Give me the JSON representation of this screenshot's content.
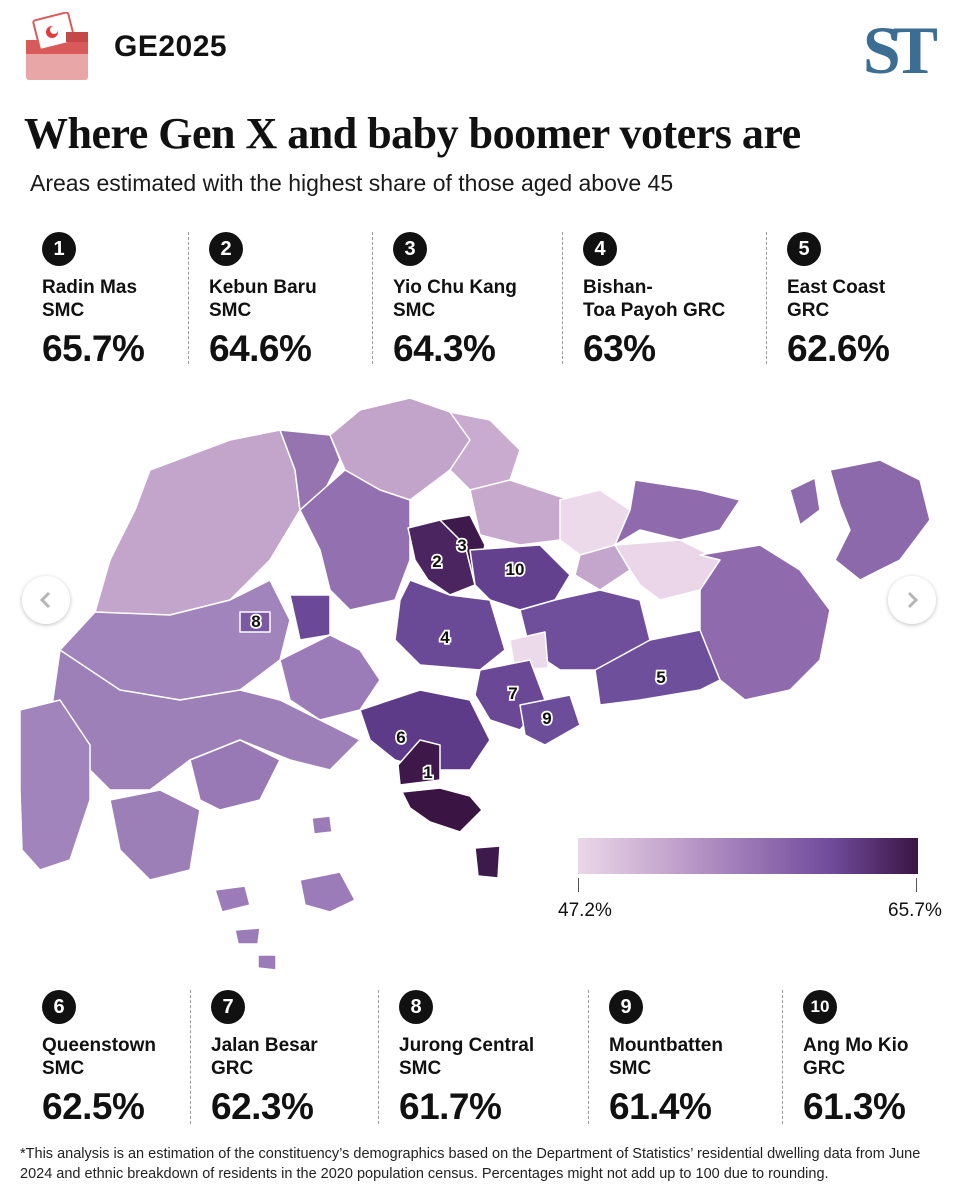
{
  "header": {
    "tag": "GE2025",
    "logo": "ST",
    "ballot_icon": "ballot-box-icon"
  },
  "title": "Where Gen X and baby boomer voters are",
  "subtitle": "Areas estimated with the highest share of those aged above 45",
  "top_ranks": [
    {
      "rank": "1",
      "name": "Radin Mas\nSMC",
      "pct": "65.7%"
    },
    {
      "rank": "2",
      "name": "Kebun Baru\nSMC",
      "pct": "64.6%"
    },
    {
      "rank": "3",
      "name": "Yio Chu Kang\nSMC",
      "pct": "64.3%"
    },
    {
      "rank": "4",
      "name": "Bishan-\nToa Payoh GRC",
      "pct": "63%"
    },
    {
      "rank": "5",
      "name": "East Coast\nGRC",
      "pct": "62.6%"
    }
  ],
  "bottom_ranks": [
    {
      "rank": "6",
      "name": "Queenstown\nSMC",
      "pct": "62.5%"
    },
    {
      "rank": "7",
      "name": "Jalan Besar\nGRC",
      "pct": "62.3%"
    },
    {
      "rank": "8",
      "name": "Jurong Central\nSMC",
      "pct": "61.7%"
    },
    {
      "rank": "9",
      "name": "Mountbatten\nSMC",
      "pct": "61.4%"
    },
    {
      "rank": "10",
      "name": "Ang Mo Kio\nGRC",
      "pct": "61.3%"
    }
  ],
  "map_labels": [
    "1",
    "2",
    "3",
    "4",
    "5",
    "6",
    "7",
    "8",
    "9",
    "10"
  ],
  "legend": {
    "min": "47.2%",
    "max": "65.7%",
    "colors": [
      "#ead7e8",
      "#3a1544"
    ]
  },
  "nav": {
    "left_icon": "chevron-left-icon",
    "right_icon": "chevron-right-icon"
  },
  "footnote": "*This analysis is an estimation of the constituency’s demographics based on the Department of Statistics’ residential dwelling data from June 2024 and ethnic breakdown of residents in the 2020 population census. Percentages might not add up to 100 due to rounding."
}
